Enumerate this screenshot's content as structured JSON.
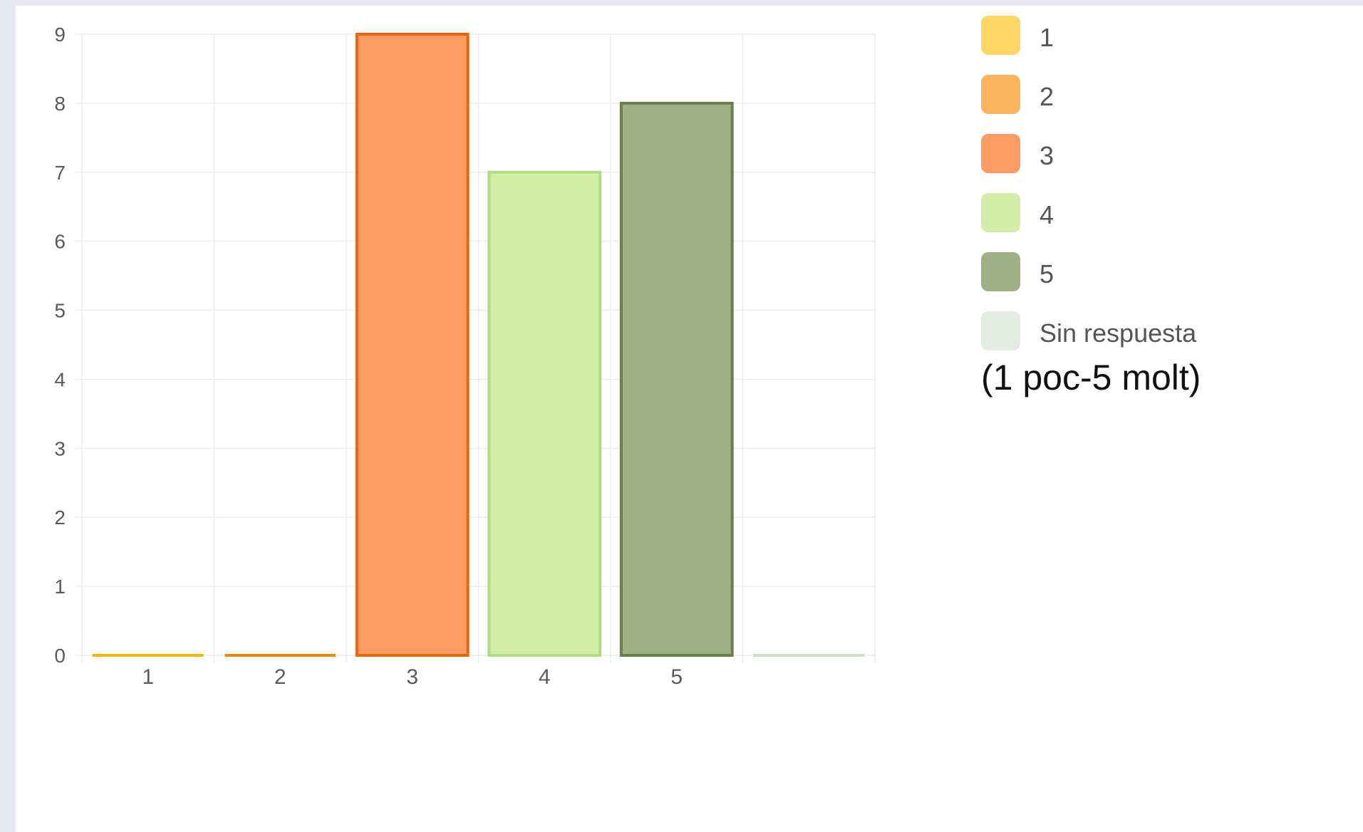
{
  "chart_data": {
    "type": "bar",
    "categories": [
      "1",
      "2",
      "3",
      "4",
      "5",
      ""
    ],
    "values": [
      0,
      0,
      9,
      7,
      8,
      0
    ],
    "ylim": [
      0,
      9
    ],
    "yticks": [
      "0",
      "1",
      "2",
      "3",
      "4",
      "5",
      "6",
      "7",
      "8",
      "9"
    ],
    "grid": true,
    "legend_position": "right",
    "colors": [
      {
        "fill": "#fdd663",
        "stroke": "#f2b705"
      },
      {
        "fill": "#fcb55c",
        "stroke": "#f08a00"
      },
      {
        "fill": "#fc9c62",
        "stroke": "#e8650c"
      },
      {
        "fill": "#d2eda5",
        "stroke": "#b2dc82"
      },
      {
        "fill": "#9fb087",
        "stroke": "#6b7f4c"
      },
      {
        "fill": "#e3ece0",
        "stroke": "#cfdcc8"
      }
    ]
  },
  "legend": [
    {
      "label": "1",
      "color": "#fdd663"
    },
    {
      "label": "2",
      "color": "#fcb55c"
    },
    {
      "label": "3",
      "color": "#fc9c62"
    },
    {
      "label": "4",
      "color": "#d2eda5"
    },
    {
      "label": "5",
      "color": "#9fb087"
    },
    {
      "label": "Sin respuesta",
      "color": "#e3ece0"
    }
  ],
  "note": "(1 poc-5 molt)"
}
